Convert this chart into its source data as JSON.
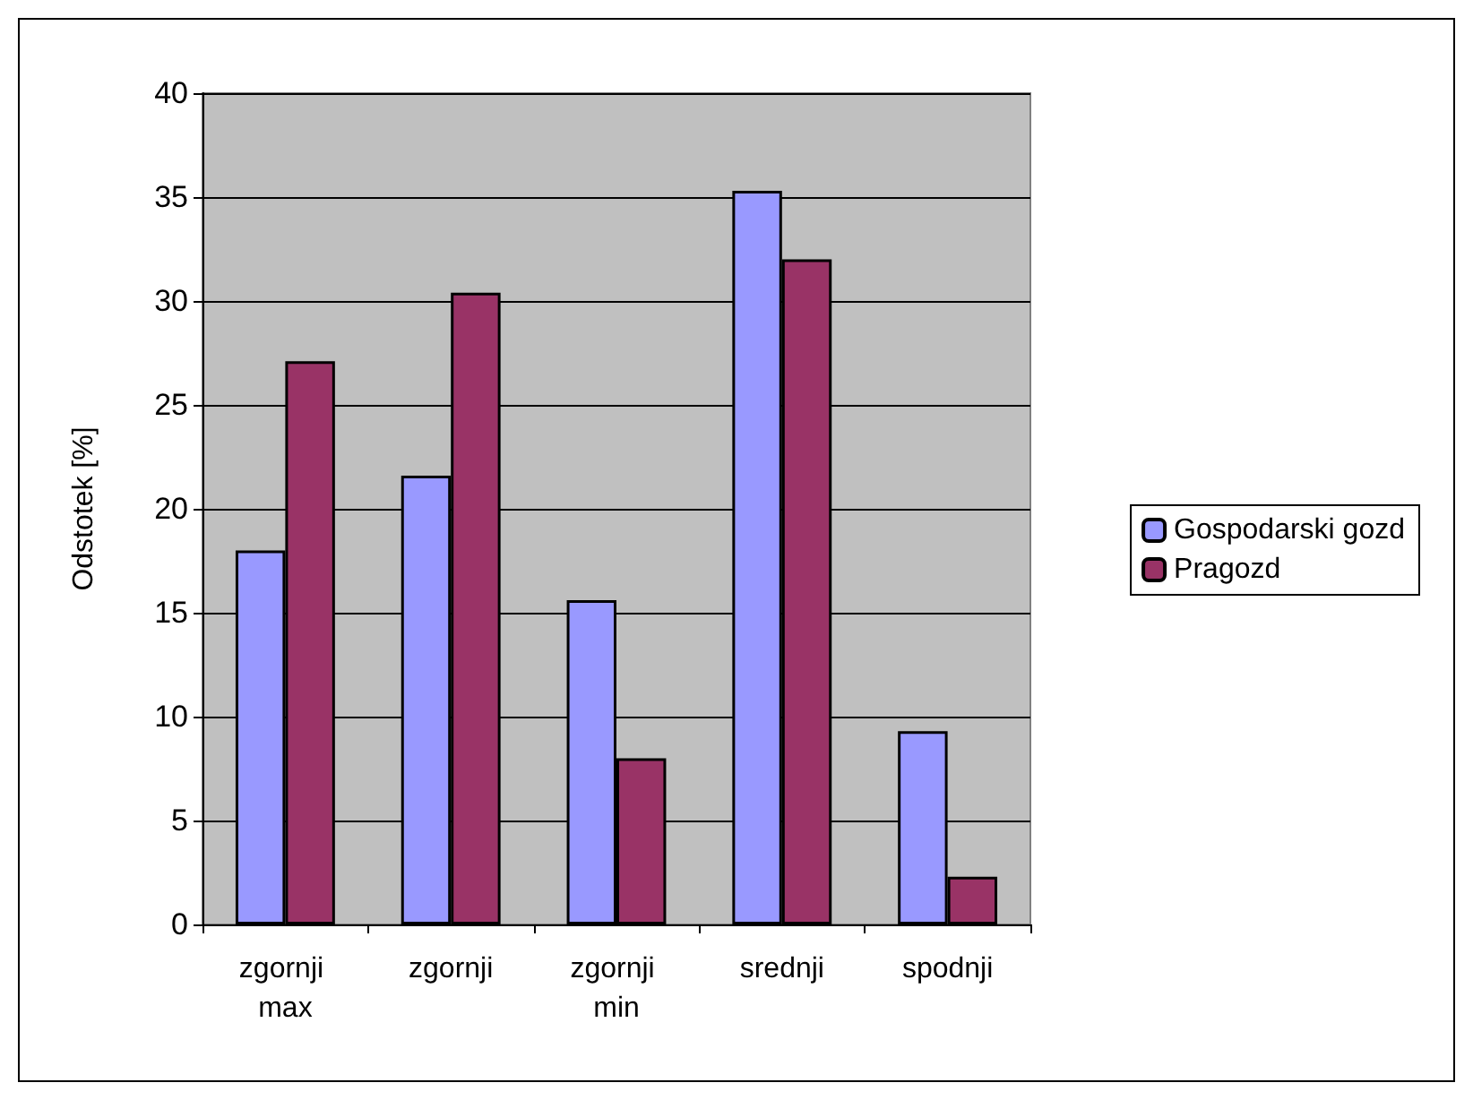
{
  "chart_data": {
    "type": "bar",
    "ylabel": "Odstotek [%]",
    "categories": [
      "zgornji max",
      "zgornji",
      "zgornji min",
      "srednji",
      "spodnji"
    ],
    "series": [
      {
        "name": "Gospodarski gozd",
        "color": "#9999ff",
        "values": [
          18.0,
          21.6,
          15.6,
          35.3,
          9.3
        ]
      },
      {
        "name": "Pragozd",
        "color": "#993366",
        "values": [
          27.1,
          30.4,
          8.0,
          32.0,
          2.3
        ]
      }
    ],
    "ylim": [
      0,
      40
    ],
    "yticks": [
      0,
      5,
      10,
      15,
      20,
      25,
      30,
      35,
      40
    ],
    "grid": "y",
    "legend": "right"
  }
}
